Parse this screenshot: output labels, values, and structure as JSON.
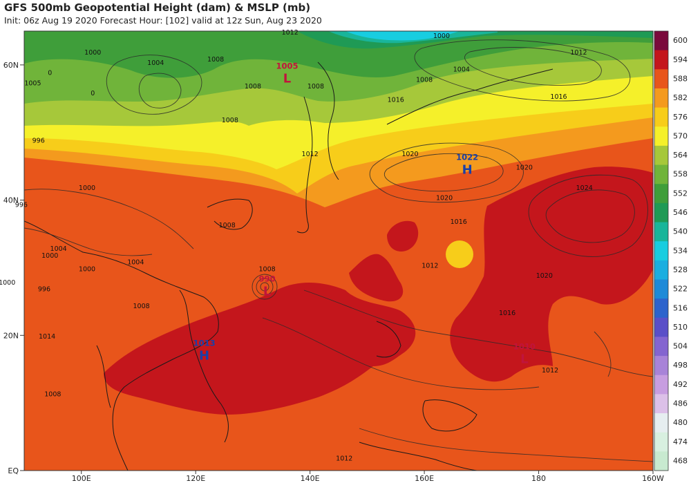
{
  "title": "GFS 500mb Geopotential Height (dam) & MSLP (mb)",
  "subtitle": "Init: 06z Aug 19 2020   Forecast Hour: [102]   valid at 12z Sun, Aug 23 2020",
  "lat_labels": [
    "60N",
    "40N",
    "20N",
    "EQ"
  ],
  "lon_labels": [
    "100E",
    "120E",
    "140E",
    "160E",
    "180",
    "160W"
  ],
  "colorbar": {
    "levels": [
      "600",
      "594",
      "588",
      "582",
      "576",
      "570",
      "564",
      "558",
      "552",
      "546",
      "540",
      "534",
      "528",
      "522",
      "516",
      "510",
      "504",
      "498",
      "492",
      "486",
      "480",
      "474",
      "468"
    ],
    "colors": [
      "#7a0a3c",
      "#c4161c",
      "#e8551b",
      "#f49a1e",
      "#f7cd1a",
      "#f5f02a",
      "#a6c83a",
      "#70b43a",
      "#3f9e3a",
      "#1f9a55",
      "#19b59a",
      "#18cde0",
      "#1aaee0",
      "#1e8ad8",
      "#2d63cc",
      "#5a4fc8",
      "#8465d0",
      "#a883d8",
      "#c79de0",
      "#dcc0e8",
      "#e6eef0",
      "#d8f0e0",
      "#c8ead0"
    ]
  },
  "pressure_centers": [
    {
      "type": "L",
      "value": "1005",
      "color": "#c0143c",
      "lon": 136.0,
      "lat": 58.0
    },
    {
      "type": "H",
      "value": "1022",
      "color": "#1a3fa8",
      "lon": 167.5,
      "lat": 44.5
    },
    {
      "type": "L",
      "value": "990",
      "color": "#c0143c",
      "lon": 132.5,
      "lat": 26.5
    },
    {
      "type": "H",
      "value": "1013",
      "color": "#1a3fa8",
      "lon": 121.5,
      "lat": 17.0
    },
    {
      "type": "L",
      "value": "1010",
      "color": "#c0143c",
      "lon": 177.5,
      "lat": 16.5
    }
  ],
  "isobar_labels": [
    {
      "text": "1012",
      "lon": 136.5,
      "lat": 64.5
    },
    {
      "text": "1000",
      "lon": 163.0,
      "lat": 64.0
    },
    {
      "text": "1004",
      "lon": 166.5,
      "lat": 59.0
    },
    {
      "text": "1008",
      "lon": 160.0,
      "lat": 57.5
    },
    {
      "text": "1012",
      "lon": 187.0,
      "lat": 61.5
    },
    {
      "text": "1000",
      "lon": 102.0,
      "lat": 61.5
    },
    {
      "text": "1004",
      "lon": 113.0,
      "lat": 60.0
    },
    {
      "text": "1008",
      "lon": 123.5,
      "lat": 60.5
    },
    {
      "text": "1008",
      "lon": 130.0,
      "lat": 56.5
    },
    {
      "text": "1008",
      "lon": 141.0,
      "lat": 56.5
    },
    {
      "text": "1005",
      "lon": 91.5,
      "lat": 57.0
    },
    {
      "text": "0",
      "lon": 94.5,
      "lat": 58.5
    },
    {
      "text": "0",
      "lon": 102.0,
      "lat": 55.5
    },
    {
      "text": "1016",
      "lon": 155.0,
      "lat": 54.5
    },
    {
      "text": "1016",
      "lon": 183.5,
      "lat": 55.0
    },
    {
      "text": "1008",
      "lon": 126.0,
      "lat": 51.5
    },
    {
      "text": "996",
      "lon": 92.5,
      "lat": 48.5
    },
    {
      "text": "1012",
      "lon": 140.0,
      "lat": 46.5
    },
    {
      "text": "1020",
      "lon": 157.5,
      "lat": 46.5
    },
    {
      "text": "1020",
      "lon": 177.5,
      "lat": 44.5
    },
    {
      "text": "1024",
      "lon": 188.0,
      "lat": 41.5
    },
    {
      "text": "1000",
      "lon": 101.0,
      "lat": 41.5
    },
    {
      "text": "996",
      "lon": 89.5,
      "lat": 39.0
    },
    {
      "text": "1020",
      "lon": 163.5,
      "lat": 40.0
    },
    {
      "text": "1016",
      "lon": 166.0,
      "lat": 36.5
    },
    {
      "text": "1008",
      "lon": 125.5,
      "lat": 36.0
    },
    {
      "text": "1004",
      "lon": 96.0,
      "lat": 32.5
    },
    {
      "text": "1000",
      "lon": 94.5,
      "lat": 31.5
    },
    {
      "text": "1004",
      "lon": 109.5,
      "lat": 30.5
    },
    {
      "text": "1000",
      "lon": 101.0,
      "lat": 29.5
    },
    {
      "text": "1008",
      "lon": 132.5,
      "lat": 29.5
    },
    {
      "text": "1012",
      "lon": 161.0,
      "lat": 30.0
    },
    {
      "text": "1020",
      "lon": 181.0,
      "lat": 28.5
    },
    {
      "text": "1000",
      "lon": 87.0,
      "lat": 27.5
    },
    {
      "text": "996",
      "lon": 93.5,
      "lat": 26.5
    },
    {
      "text": "1008",
      "lon": 110.5,
      "lat": 24.0
    },
    {
      "text": "1016",
      "lon": 174.5,
      "lat": 23.0
    },
    {
      "text": "1014",
      "lon": 94.0,
      "lat": 19.5
    },
    {
      "text": "1012",
      "lon": 182.0,
      "lat": 14.5
    },
    {
      "text": "1008",
      "lon": 95.0,
      "lat": 11.0
    },
    {
      "text": "1012",
      "lon": 146.0,
      "lat": 1.5
    }
  ]
}
